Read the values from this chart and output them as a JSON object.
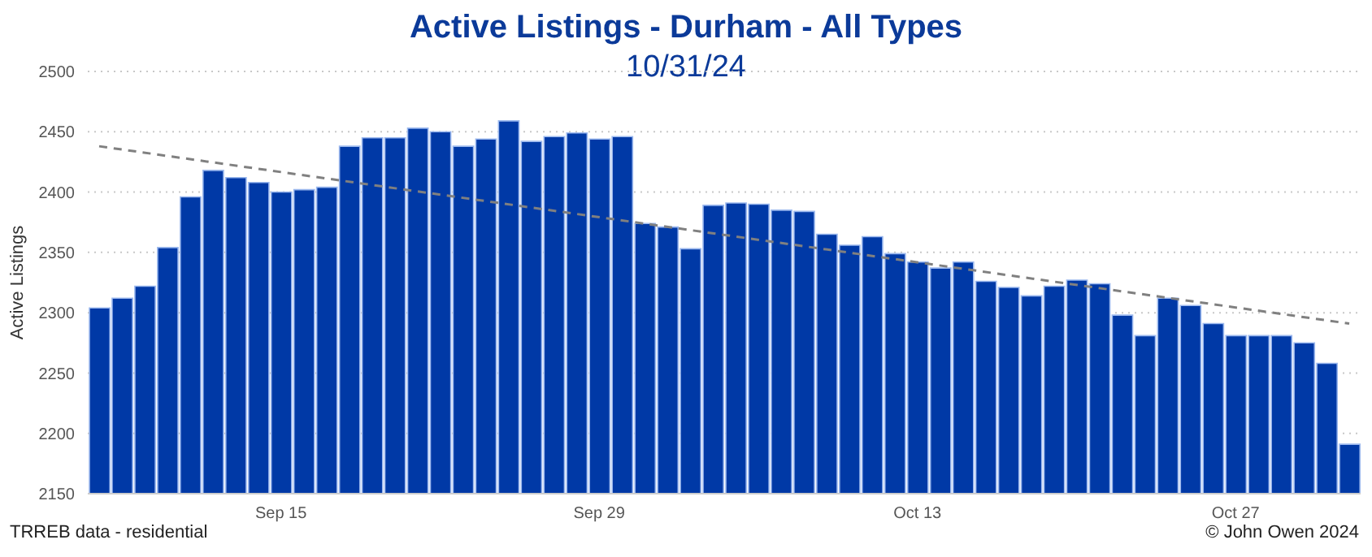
{
  "chart_data": {
    "type": "bar",
    "title": "Active Listings - Durham - All Types",
    "subtitle": "10/31/24",
    "ylabel": "Active Listings",
    "x": [
      "2024-09-07",
      "2024-09-08",
      "2024-09-09",
      "2024-09-10",
      "2024-09-11",
      "2024-09-12",
      "2024-09-13",
      "2024-09-14",
      "2024-09-15",
      "2024-09-16",
      "2024-09-17",
      "2024-09-18",
      "2024-09-19",
      "2024-09-20",
      "2024-09-21",
      "2024-09-22",
      "2024-09-23",
      "2024-09-24",
      "2024-09-25",
      "2024-09-26",
      "2024-09-27",
      "2024-09-28",
      "2024-09-29",
      "2024-09-30",
      "2024-10-01",
      "2024-10-02",
      "2024-10-03",
      "2024-10-04",
      "2024-10-05",
      "2024-10-06",
      "2024-10-07",
      "2024-10-08",
      "2024-10-09",
      "2024-10-10",
      "2024-10-11",
      "2024-10-12",
      "2024-10-13",
      "2024-10-14",
      "2024-10-15",
      "2024-10-16",
      "2024-10-17",
      "2024-10-18",
      "2024-10-19",
      "2024-10-20",
      "2024-10-21",
      "2024-10-22",
      "2024-10-23",
      "2024-10-24",
      "2024-10-25",
      "2024-10-26",
      "2024-10-27",
      "2024-10-28",
      "2024-10-29",
      "2024-10-30",
      "2024-10-31",
      "2024-11-01"
    ],
    "series": [
      {
        "color": "#0039a6",
        "values": [
          2304,
          2312,
          2322,
          2354,
          2396,
          2418,
          2412,
          2408,
          2400,
          2402,
          2404,
          2438,
          2445,
          2445,
          2453,
          2450,
          2438,
          2444,
          2459,
          2442,
          2446,
          2449,
          2444,
          2446,
          2374,
          2371,
          2353,
          2389,
          2391,
          2390,
          2385,
          2384,
          2365,
          2356,
          2363,
          2349,
          2342,
          2337,
          2342,
          2326,
          2321,
          2314,
          2322,
          2327,
          2324,
          2298,
          2281,
          2312,
          2306,
          2291,
          2281,
          2281,
          2281,
          2275,
          2258,
          2191
        ]
      },
      {
        "type": "line",
        "color": "#808080",
        "line_style": "dashed",
        "marker": "none",
        "x": [
          "2024-09-07",
          "2024-11-01"
        ],
        "values": [
          2438,
          2291
        ]
      }
    ],
    "xlim": [
      "2024-09-06T12:00",
      "2024-11-01T12:00"
    ],
    "xticks": [
      {
        "value": "2024-09-15",
        "label": "Sep 15"
      },
      {
        "value": "2024-09-29",
        "label": "Sep 29"
      },
      {
        "value": "2024-10-13",
        "label": "Oct 13"
      },
      {
        "value": "2024-10-27",
        "label": "Oct 27"
      }
    ],
    "ylim": [
      2150,
      2500
    ],
    "yticks": [
      2150,
      2200,
      2250,
      2300,
      2350,
      2400,
      2450,
      2500
    ],
    "grid": "y",
    "legend": false,
    "annotations": [
      "TRREB data - residential",
      "© John Owen 2024"
    ]
  }
}
